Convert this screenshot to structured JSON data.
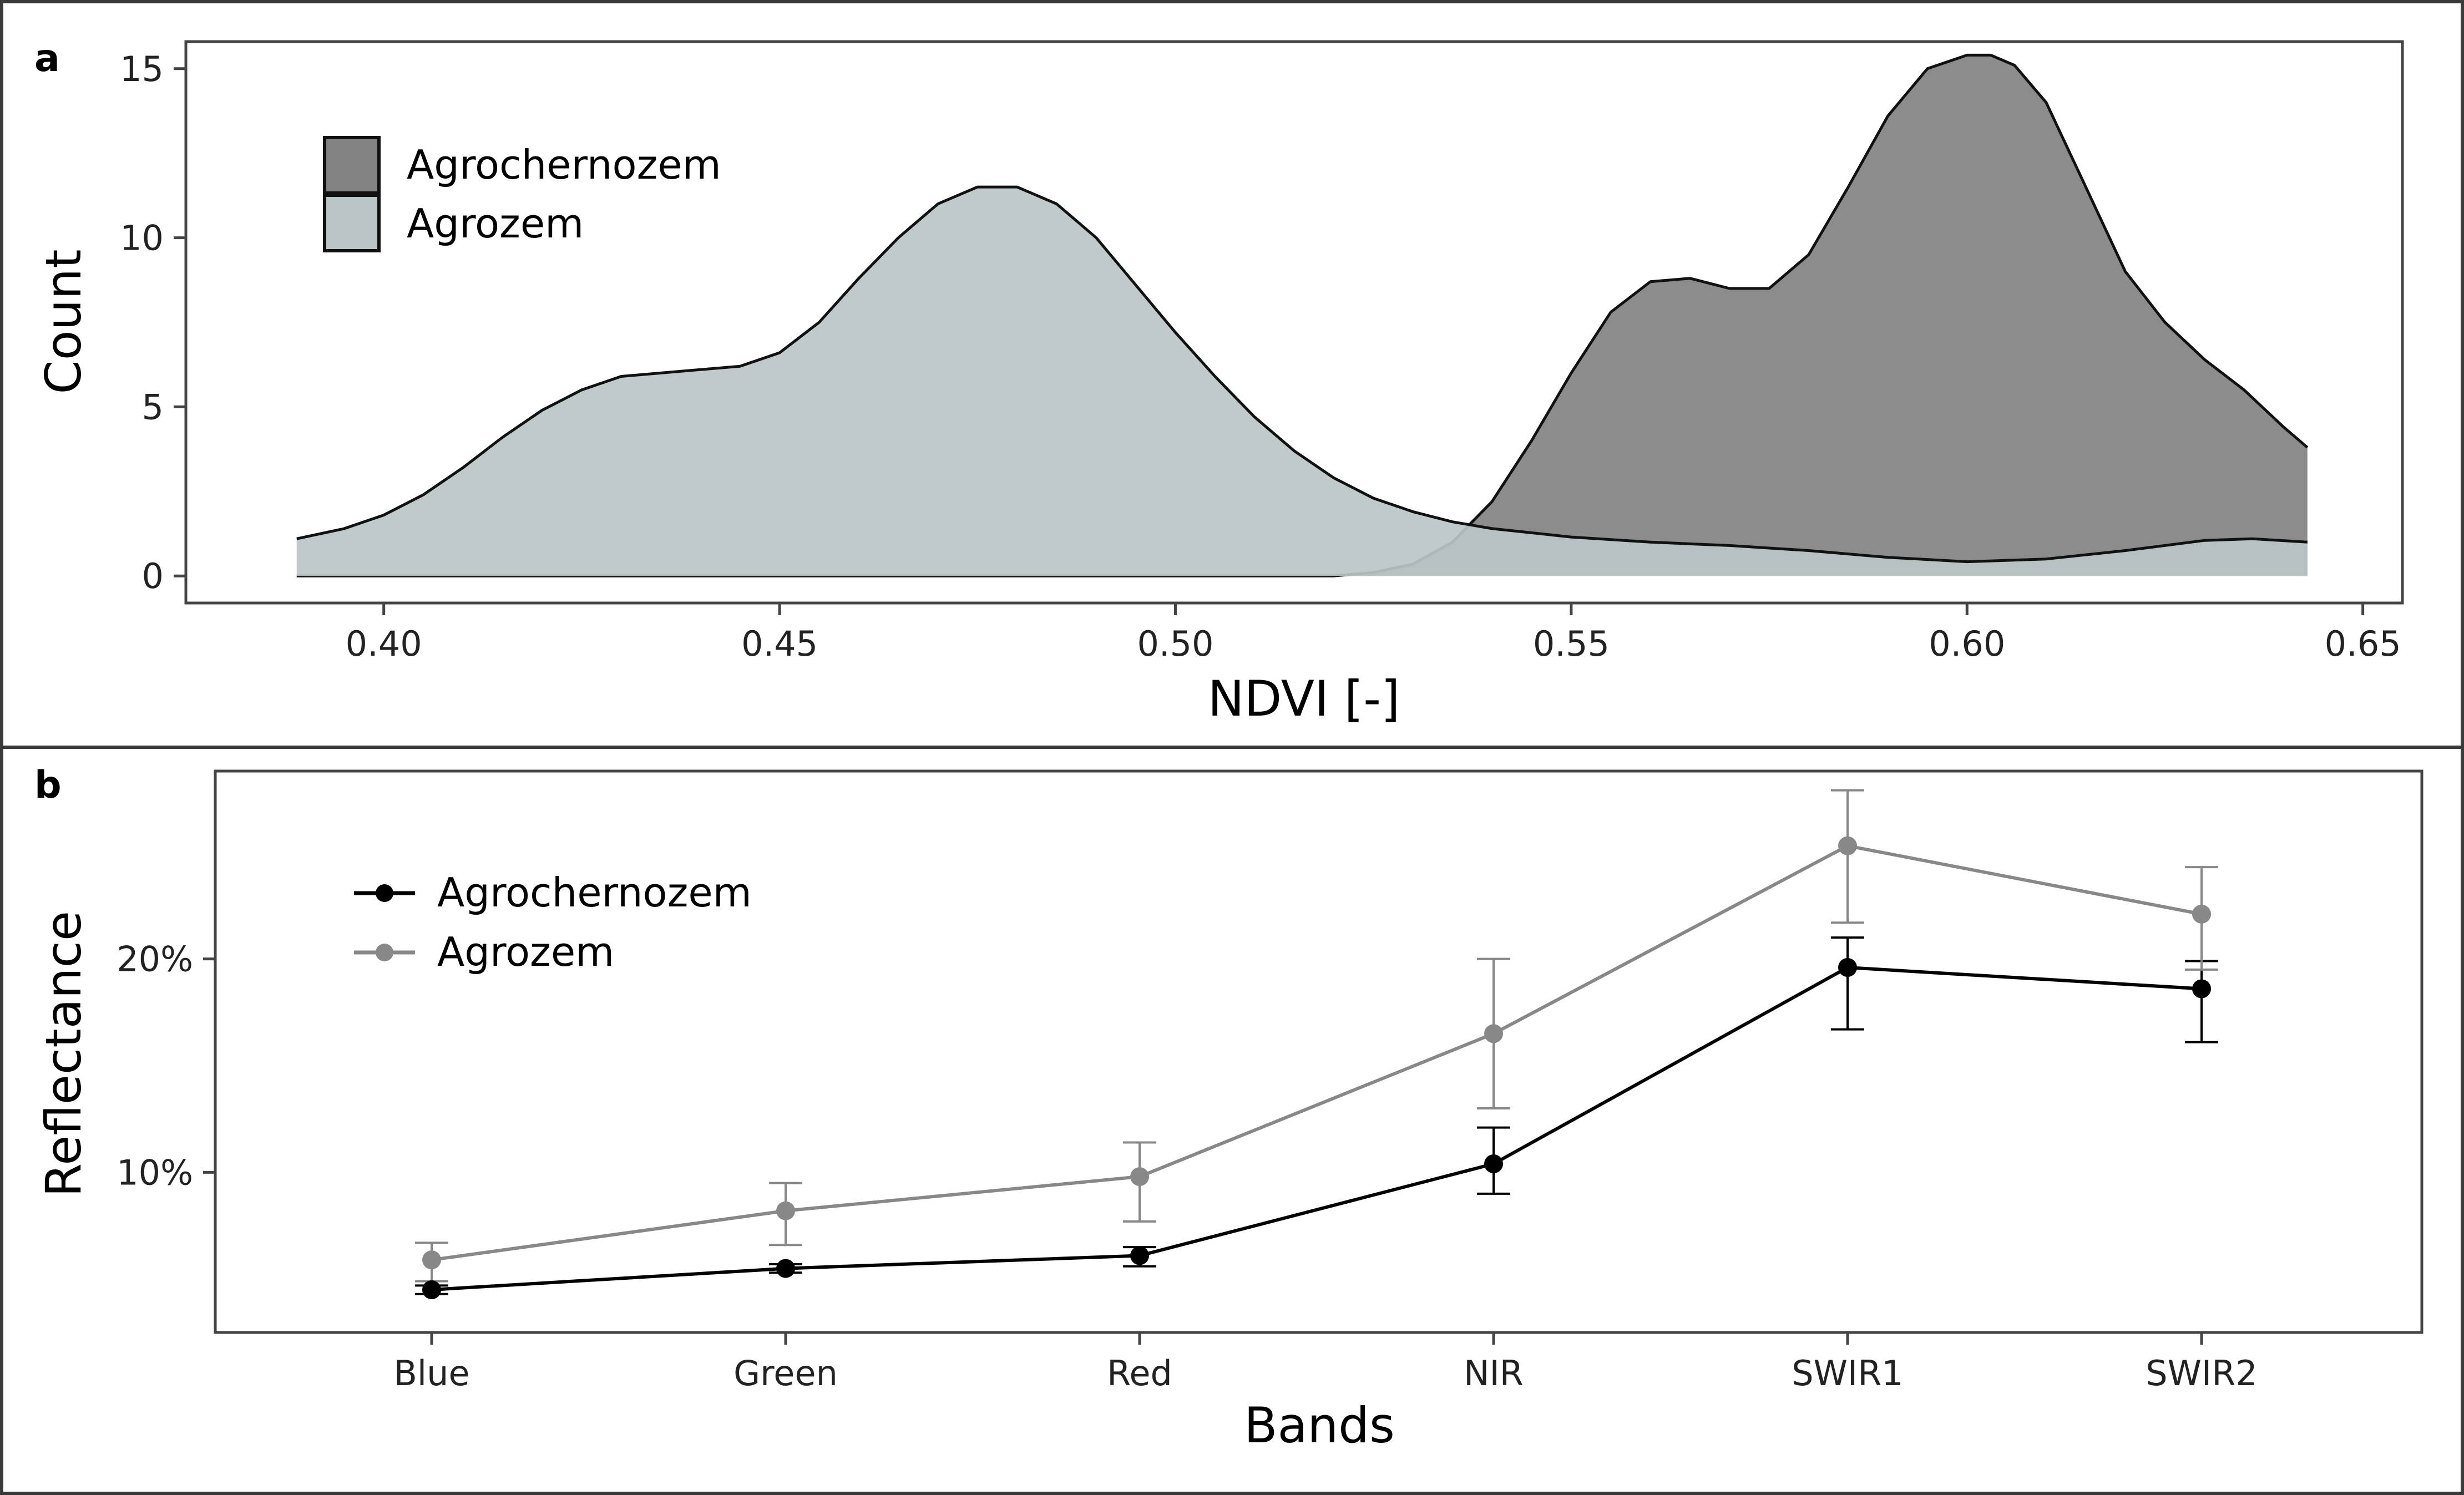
{
  "chart_data": [
    {
      "panel_label": "a",
      "type": "area",
      "xlabel": "NDVI [-]",
      "ylabel": "Count",
      "xlim": [
        0.375,
        0.655
      ],
      "ylim": [
        -0.8,
        15.8
      ],
      "x_ticks": [
        0.4,
        0.45,
        0.5,
        0.55,
        0.6,
        0.65
      ],
      "x_tick_labels": [
        "0.40",
        "0.45",
        "0.50",
        "0.55",
        "0.60",
        "0.65"
      ],
      "y_ticks": [
        0,
        5,
        10,
        15
      ],
      "y_tick_labels": [
        "0",
        "5",
        "10",
        "15"
      ],
      "legend": [
        "Agrochernozem",
        "Agrozem"
      ],
      "legend_position": "top-left",
      "series": [
        {
          "name": "Agrochernozem",
          "color": "#828282",
          "x": [
            0.389,
            0.52,
            0.525,
            0.53,
            0.535,
            0.54,
            0.545,
            0.55,
            0.555,
            0.56,
            0.565,
            0.57,
            0.575,
            0.58,
            0.585,
            0.59,
            0.595,
            0.6,
            0.603,
            0.606,
            0.61,
            0.615,
            0.62,
            0.625,
            0.63,
            0.635,
            0.64,
            0.643
          ],
          "values": [
            0,
            0,
            0.1,
            0.35,
            1.0,
            2.2,
            4.0,
            6.0,
            7.8,
            8.7,
            8.8,
            8.5,
            8.5,
            9.5,
            11.5,
            13.6,
            15.0,
            15.4,
            15.4,
            15.1,
            14.0,
            11.5,
            9.0,
            7.5,
            6.4,
            5.5,
            4.4,
            3.8
          ]
        },
        {
          "name": "Agrozem",
          "color": "#bcc5c6",
          "x": [
            0.389,
            0.395,
            0.4,
            0.405,
            0.41,
            0.415,
            0.42,
            0.425,
            0.43,
            0.435,
            0.44,
            0.445,
            0.45,
            0.455,
            0.46,
            0.465,
            0.47,
            0.475,
            0.48,
            0.485,
            0.49,
            0.495,
            0.5,
            0.505,
            0.51,
            0.515,
            0.52,
            0.525,
            0.53,
            0.535,
            0.54,
            0.55,
            0.56,
            0.57,
            0.58,
            0.59,
            0.6,
            0.61,
            0.62,
            0.63,
            0.636,
            0.643
          ],
          "values": [
            1.1,
            1.4,
            1.8,
            2.4,
            3.2,
            4.1,
            4.9,
            5.5,
            5.9,
            6.0,
            6.1,
            6.2,
            6.6,
            7.5,
            8.8,
            10.0,
            11.0,
            11.5,
            11.5,
            11.0,
            10.0,
            8.6,
            7.2,
            5.9,
            4.7,
            3.7,
            2.9,
            2.3,
            1.9,
            1.6,
            1.4,
            1.15,
            1.0,
            0.9,
            0.75,
            0.55,
            0.42,
            0.5,
            0.75,
            1.05,
            1.1,
            1.0
          ]
        }
      ]
    },
    {
      "panel_label": "b",
      "type": "line",
      "xlabel": "Bands",
      "ylabel": "Reflectance",
      "categories": [
        "Blue",
        "Green",
        "Red",
        "NIR",
        "SWIR1",
        "SWIR2"
      ],
      "ylim": [
        2.5,
        28.8
      ],
      "y_ticks": [
        10,
        20
      ],
      "y_tick_labels": [
        "10%",
        "20%"
      ],
      "legend": [
        "Agrochernozem",
        "Agrozem"
      ],
      "legend_position": "top-left",
      "series": [
        {
          "name": "Agrochernozem",
          "color": "#000000",
          "values": [
            4.5,
            5.5,
            6.1,
            10.4,
            19.6,
            18.6
          ],
          "err_low": [
            4.3,
            5.3,
            5.6,
            9.0,
            16.7,
            16.1
          ],
          "err_high": [
            4.7,
            5.7,
            6.5,
            12.1,
            21.0,
            19.9
          ]
        },
        {
          "name": "Agrozem",
          "color": "#888888",
          "values": [
            5.9,
            8.2,
            9.8,
            16.5,
            25.3,
            22.1
          ],
          "err_low": [
            4.9,
            6.6,
            7.7,
            13.0,
            21.7,
            19.5
          ],
          "err_high": [
            6.7,
            9.5,
            11.4,
            20.0,
            27.9,
            24.3
          ]
        }
      ]
    }
  ]
}
